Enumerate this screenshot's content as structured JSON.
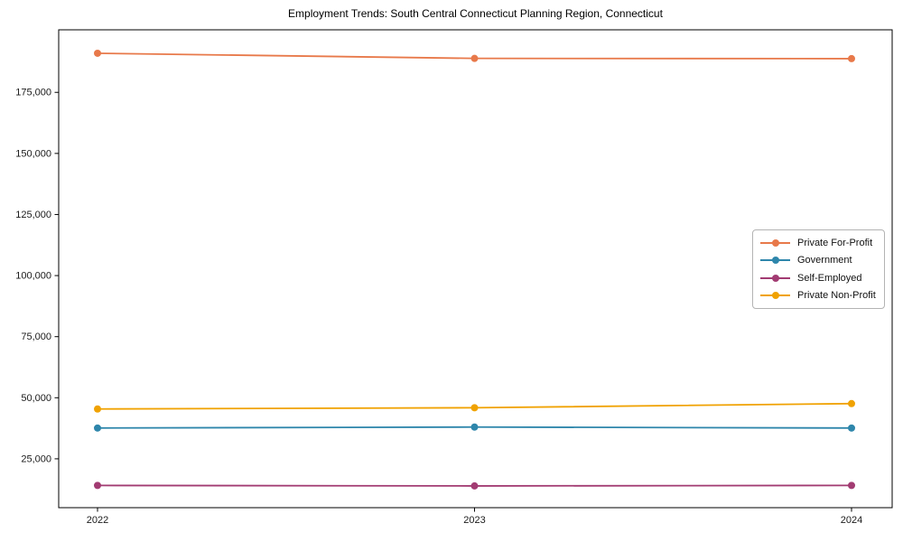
{
  "title": "Employment Trends: South Central Connecticut Planning Region, Connecticut",
  "chart_data": {
    "type": "line",
    "title": "Employment Trends: South Central Connecticut Planning Region, Connecticut",
    "xlabel": "",
    "ylabel": "",
    "categories": [
      "2022",
      "2023",
      "2024"
    ],
    "series": [
      {
        "name": "Private For-Profit",
        "color": "#E8794A",
        "values": [
          191000,
          188900,
          188800
        ]
      },
      {
        "name": "Government",
        "color": "#2E86AB",
        "values": [
          37600,
          38000,
          37600
        ]
      },
      {
        "name": "Self-Employed",
        "color": "#A23B72",
        "values": [
          14100,
          13900,
          14100
        ]
      },
      {
        "name": "Private Non-Profit",
        "color": "#F0A202",
        "values": [
          45400,
          45900,
          47600
        ]
      }
    ],
    "ylim": [
      5000,
      200600
    ],
    "yticks": [
      25000,
      50000,
      75000,
      100000,
      125000,
      150000,
      175000
    ],
    "ytick_labels": [
      "25,000",
      "50,000",
      "75,000",
      "100,000",
      "125,000",
      "150,000",
      "175,000"
    ],
    "grid": false,
    "legend_position": "center-right",
    "marker": "circle",
    "frame_color": "#000000",
    "tick_color": "#1a1a1a"
  }
}
